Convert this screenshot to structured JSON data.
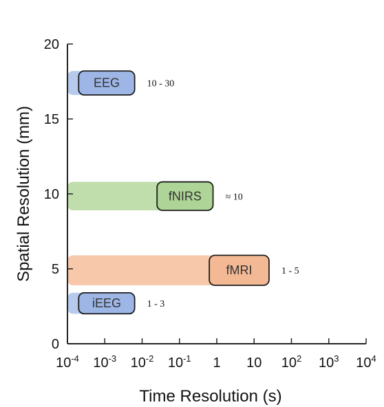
{
  "chart_data": {
    "type": "bar",
    "title": "",
    "xlabel": "Time Resolution (s)",
    "ylabel": "Spatial Resolution (mm)",
    "xscale": "log",
    "xlim": [
      -4,
      4
    ],
    "ylim": [
      0,
      20
    ],
    "xticks": [
      {
        "exp": -4,
        "label": "10",
        "sup": "-4"
      },
      {
        "exp": -3,
        "label": "10",
        "sup": "-3"
      },
      {
        "exp": -2,
        "label": "10",
        "sup": "-2"
      },
      {
        "exp": -1,
        "label": "10",
        "sup": "-1"
      },
      {
        "exp": 0,
        "label": "1",
        "sup": ""
      },
      {
        "exp": 1,
        "label": "10",
        "sup": ""
      },
      {
        "exp": 2,
        "label": "10",
        "sup": "2"
      },
      {
        "exp": 3,
        "label": "10",
        "sup": "3"
      },
      {
        "exp": 4,
        "label": "10",
        "sup": "4"
      }
    ],
    "yticks": [
      0,
      5,
      10,
      15,
      20
    ],
    "series": [
      {
        "name": "EEG",
        "x_range": [
          -4,
          -2.2
        ],
        "box_x_range": [
          -3.7,
          -2.2
        ],
        "y_range": [
          16.6,
          18.2
        ],
        "range_label": "10 - 30",
        "fill": "#AFC3EA",
        "box_fill": "#9DB6E6",
        "box_stroke": "#1C1C1C"
      },
      {
        "name": "fNIRS",
        "x_range": [
          -4,
          -0.1
        ],
        "box_x_range": [
          -1.6,
          -0.1
        ],
        "y_range": [
          8.9,
          10.8
        ],
        "range_label": "≈ 10",
        "fill": "#B9D9A3",
        "box_fill": "#AED497",
        "box_stroke": "#1C1C1C"
      },
      {
        "name": "fMRI",
        "x_range": [
          -4,
          1.4
        ],
        "box_x_range": [
          -0.2,
          1.4
        ],
        "y_range": [
          3.9,
          5.9
        ],
        "range_label": "1 - 5",
        "fill": "#F6C2A0",
        "box_fill": "#F3B995",
        "box_stroke": "#1C1C1C"
      },
      {
        "name": "iEEG",
        "x_range": [
          -4,
          -2.2
        ],
        "box_x_range": [
          -3.7,
          -2.2
        ],
        "y_range": [
          2.0,
          3.4
        ],
        "range_label": "1 - 3",
        "fill": "#AFC3EA",
        "box_fill": "#9DB6E6",
        "box_stroke": "#1C1C1C"
      }
    ]
  }
}
